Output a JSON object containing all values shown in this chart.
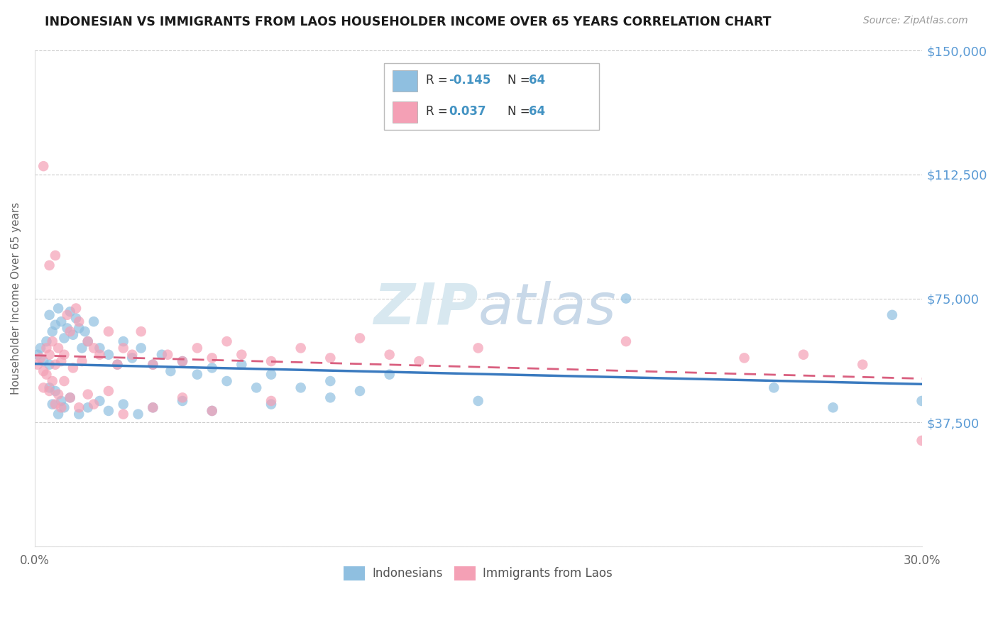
{
  "title": "INDONESIAN VS IMMIGRANTS FROM LAOS HOUSEHOLDER INCOME OVER 65 YEARS CORRELATION CHART",
  "source": "Source: ZipAtlas.com",
  "ylabel": "Householder Income Over 65 years",
  "xlim": [
    0.0,
    0.3
  ],
  "ylim": [
    0,
    150000
  ],
  "yticks": [
    0,
    37500,
    75000,
    112500,
    150000
  ],
  "ytick_labels": [
    "",
    "$37,500",
    "$75,000",
    "$112,500",
    "$150,000"
  ],
  "xticks": [
    0.0,
    0.05,
    0.1,
    0.15,
    0.2,
    0.25,
    0.3
  ],
  "xtick_labels": [
    "0.0%",
    "",
    "",
    "",
    "",
    "",
    "30.0%"
  ],
  "blue_color": "#8fbfe0",
  "pink_color": "#f4a0b5",
  "blue_line_color": "#3a7abf",
  "pink_line_color": "#d95f7f",
  "R_blue": -0.145,
  "R_pink": 0.037,
  "N_blue": 64,
  "N_pink": 64,
  "indonesians_x": [
    0.001,
    0.002,
    0.003,
    0.004,
    0.005,
    0.005,
    0.006,
    0.007,
    0.008,
    0.009,
    0.01,
    0.011,
    0.012,
    0.013,
    0.014,
    0.015,
    0.016,
    0.017,
    0.018,
    0.02,
    0.022,
    0.025,
    0.028,
    0.03,
    0.033,
    0.036,
    0.04,
    0.043,
    0.046,
    0.05,
    0.055,
    0.06,
    0.065,
    0.07,
    0.075,
    0.08,
    0.09,
    0.1,
    0.11,
    0.12,
    0.005,
    0.006,
    0.007,
    0.008,
    0.009,
    0.01,
    0.012,
    0.015,
    0.018,
    0.022,
    0.025,
    0.03,
    0.035,
    0.04,
    0.05,
    0.06,
    0.08,
    0.1,
    0.15,
    0.2,
    0.25,
    0.27,
    0.29,
    0.3
  ],
  "indonesians_y": [
    58000,
    60000,
    56000,
    62000,
    55000,
    70000,
    65000,
    67000,
    72000,
    68000,
    63000,
    66000,
    71000,
    64000,
    69000,
    66000,
    60000,
    65000,
    62000,
    68000,
    60000,
    58000,
    55000,
    62000,
    57000,
    60000,
    55000,
    58000,
    53000,
    56000,
    52000,
    54000,
    50000,
    55000,
    48000,
    52000,
    48000,
    50000,
    47000,
    52000,
    48000,
    43000,
    47000,
    40000,
    44000,
    42000,
    45000,
    40000,
    42000,
    44000,
    41000,
    43000,
    40000,
    42000,
    44000,
    41000,
    43000,
    45000,
    44000,
    75000,
    48000,
    42000,
    70000,
    44000
  ],
  "laos_x": [
    0.001,
    0.002,
    0.003,
    0.003,
    0.004,
    0.005,
    0.005,
    0.006,
    0.007,
    0.007,
    0.008,
    0.009,
    0.01,
    0.011,
    0.012,
    0.013,
    0.014,
    0.015,
    0.016,
    0.018,
    0.02,
    0.022,
    0.025,
    0.028,
    0.03,
    0.033,
    0.036,
    0.04,
    0.045,
    0.05,
    0.055,
    0.06,
    0.065,
    0.07,
    0.08,
    0.09,
    0.1,
    0.11,
    0.12,
    0.13,
    0.003,
    0.004,
    0.005,
    0.006,
    0.007,
    0.008,
    0.009,
    0.01,
    0.012,
    0.015,
    0.018,
    0.02,
    0.025,
    0.03,
    0.04,
    0.05,
    0.06,
    0.08,
    0.15,
    0.2,
    0.24,
    0.26,
    0.28,
    0.3
  ],
  "laos_y": [
    55000,
    57000,
    53000,
    115000,
    60000,
    58000,
    85000,
    62000,
    55000,
    88000,
    60000,
    56000,
    58000,
    70000,
    65000,
    54000,
    72000,
    68000,
    56000,
    62000,
    60000,
    58000,
    65000,
    55000,
    60000,
    58000,
    65000,
    55000,
    58000,
    56000,
    60000,
    57000,
    62000,
    58000,
    56000,
    60000,
    57000,
    63000,
    58000,
    56000,
    48000,
    52000,
    47000,
    50000,
    43000,
    46000,
    42000,
    50000,
    45000,
    42000,
    46000,
    43000,
    47000,
    40000,
    42000,
    45000,
    41000,
    44000,
    60000,
    62000,
    57000,
    58000,
    55000,
    32000
  ]
}
